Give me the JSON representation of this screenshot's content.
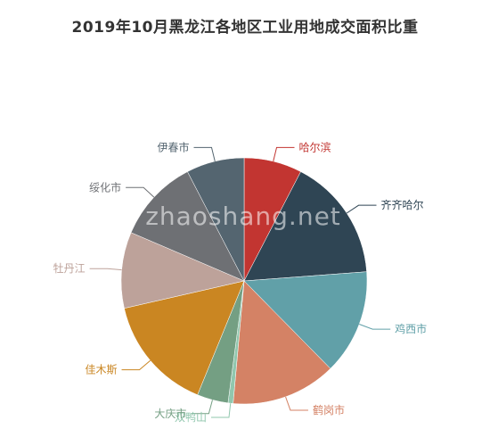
{
  "chart_data": {
    "type": "pie",
    "title": "2019年10月黑龙江各地区工业用地成交面积比重",
    "slices": [
      {
        "label": "哈尔滨",
        "value": 8.0,
        "color": "#c23531"
      },
      {
        "label": "齐齐哈尔",
        "value": 17.0,
        "color": "#2f4554"
      },
      {
        "label": "鸡西市",
        "value": 14.5,
        "color": "#61a0a8"
      },
      {
        "label": "鹤岗市",
        "value": 14.5,
        "color": "#d48265"
      },
      {
        "label": "双鸭山",
        "value": 0.7,
        "color": "#91c7ae"
      },
      {
        "label": "大庆市",
        "value": 4.3,
        "color": "#749f83"
      },
      {
        "label": "佳木斯",
        "value": 16.0,
        "color": "#ca8622"
      },
      {
        "label": "牡丹江",
        "value": 10.5,
        "color": "#bda29a"
      },
      {
        "label": "绥化市",
        "value": 11.5,
        "color": "#6e7074"
      },
      {
        "label": "伊春市",
        "value": 8.0,
        "color": "#546570"
      }
    ]
  },
  "watermark": "zhaoshang.net"
}
